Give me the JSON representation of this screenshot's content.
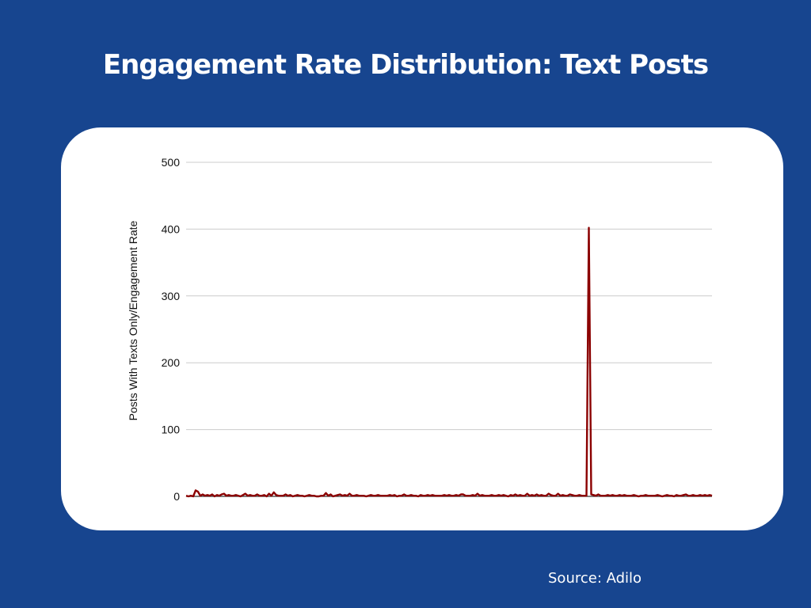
{
  "page": {
    "title": "Engagement Rate Distribution: Text Posts",
    "source": "Source: Adilo",
    "background_color": "#17458f",
    "card_color": "#ffffff"
  },
  "chart_data": {
    "type": "line",
    "title": "Engagement Rate Distribution: Text Posts",
    "xlabel": "",
    "ylabel": "Posts With Texts Only/Engagement Rate",
    "ylim": [
      0,
      500
    ],
    "yticks": [
      0,
      100,
      200,
      300,
      400,
      500
    ],
    "ytick_labels": [
      "0",
      "100",
      "200",
      "300",
      "400",
      "500"
    ],
    "grid": true,
    "legend": "none",
    "series": [
      {
        "color": "#8b0000",
        "values": [
          1,
          0,
          1,
          0,
          9,
          7,
          1,
          3,
          1,
          2,
          1,
          3,
          0,
          2,
          1,
          3,
          4,
          1,
          2,
          1,
          1,
          2,
          1,
          0,
          2,
          4,
          1,
          2,
          1,
          1,
          3,
          1,
          1,
          2,
          0,
          4,
          1,
          6,
          2,
          1,
          1,
          1,
          3,
          1,
          2,
          0,
          1,
          2,
          1,
          1,
          0,
          1,
          2,
          1,
          1,
          0,
          0,
          1,
          1,
          5,
          1,
          3,
          0,
          1,
          2,
          3,
          1,
          2,
          1,
          4,
          1,
          1,
          2,
          1,
          1,
          1,
          0,
          1,
          2,
          1,
          1,
          2,
          1,
          1,
          1,
          1,
          2,
          1,
          2,
          0,
          1,
          1,
          3,
          1,
          1,
          2,
          1,
          1,
          0,
          2,
          1,
          1,
          2,
          1,
          2,
          1,
          1,
          1,
          1,
          2,
          1,
          2,
          1,
          1,
          2,
          1,
          3,
          3,
          1,
          1,
          1,
          2,
          1,
          4,
          1,
          2,
          1,
          1,
          1,
          2,
          1,
          1,
          2,
          1,
          2,
          1,
          0,
          2,
          1,
          3,
          1,
          2,
          1,
          1,
          4,
          1,
          2,
          1,
          3,
          1,
          2,
          1,
          1,
          4,
          2,
          1,
          1,
          4,
          1,
          2,
          1,
          1,
          3,
          2,
          1,
          1,
          2,
          1,
          1,
          1,
          402,
          3,
          2,
          1,
          3,
          1,
          1,
          1,
          2,
          1,
          2,
          1,
          1,
          2,
          1,
          2,
          1,
          1,
          1,
          2,
          1,
          0,
          1,
          1,
          2,
          1,
          1,
          1,
          1,
          2,
          1,
          0,
          1,
          2,
          1,
          1,
          0,
          2,
          1,
          1,
          2,
          3,
          1,
          1,
          2,
          1,
          1,
          2,
          1,
          2,
          1,
          2,
          1
        ]
      }
    ]
  }
}
